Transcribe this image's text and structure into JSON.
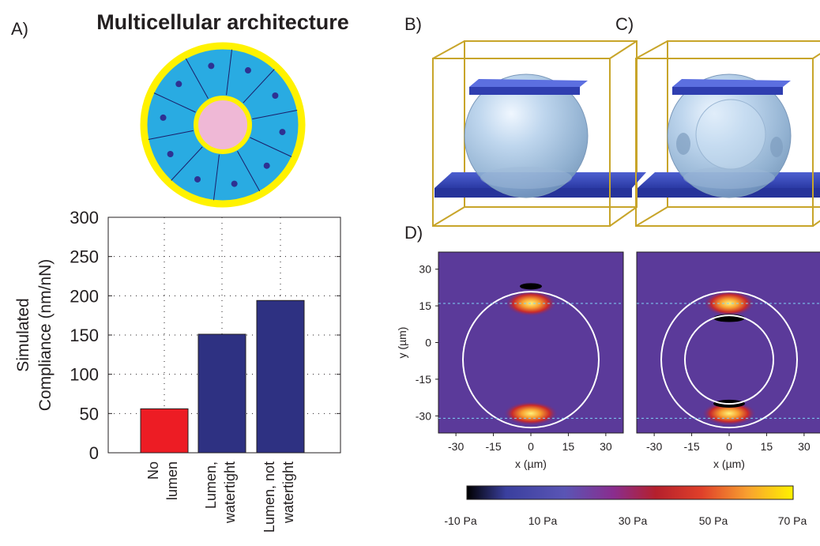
{
  "panels": {
    "a": "A)",
    "b": "B)",
    "c": "C)",
    "d": "D)"
  },
  "architecture_title": "Multicellular architecture",
  "colors": {
    "tissue": "#29abe2",
    "outline": "#fff200",
    "lumen": "#efb8d6",
    "nucleus": "#2e3192",
    "bar_no_lumen": "#ed1c24",
    "bar_lumen": "#2e3182",
    "field_background": "#5b3a9a"
  },
  "chart_data": {
    "type": "bar",
    "categories": [
      [
        "No",
        "lumen"
      ],
      [
        "Lumen,",
        "watertight"
      ],
      [
        "Lumen, not",
        "watertight"
      ]
    ],
    "values": [
      56,
      151,
      194
    ],
    "colors": [
      "#ed1c24",
      "#2e3182",
      "#2e3182"
    ],
    "ylabel_lines": [
      "Simulated",
      "Compliance (nm/nN)"
    ],
    "yticks": [
      0,
      50,
      100,
      150,
      200,
      250,
      300
    ],
    "ylim": [
      0,
      300
    ],
    "grid": true
  },
  "stress_maps": {
    "xlabel": "x (µm)",
    "ylabel": "y (µm)",
    "xticks": [
      -30,
      -15,
      0,
      15,
      30
    ],
    "yticks": [
      30,
      15,
      0,
      -15,
      -30
    ],
    "colorbar": {
      "labels": [
        "-10 Pa",
        "10 Pa",
        "30 Pa",
        "50 Pa",
        "70 Pa"
      ],
      "stops": [
        "#000000",
        "#3a3f9e",
        "#5a55b5",
        "#8a2d8e",
        "#b5202c",
        "#e0402a",
        "#f8a030",
        "#fff200"
      ]
    }
  }
}
